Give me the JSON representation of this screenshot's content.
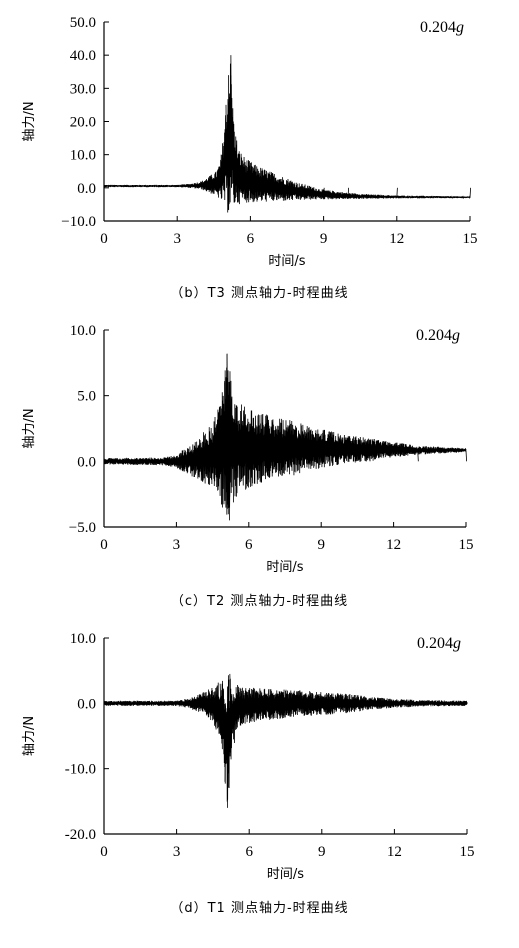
{
  "chart_data": [
    {
      "id": "b",
      "type": "line",
      "caption": "（b）T3 测点轴力-时程曲线",
      "annotation": "0.204",
      "annotation_unit": "g",
      "xlabel": "时间/s",
      "ylabel": "轴力/N",
      "xlim": [
        0,
        15
      ],
      "ylim": [
        -10,
        50
      ],
      "xticks": [
        0,
        3,
        6,
        9,
        12,
        15
      ],
      "xtick_labels": [
        "0",
        "3",
        "6",
        "9",
        "12",
        "15"
      ],
      "yticks": [
        -10,
        0,
        10,
        20,
        30,
        40,
        50
      ],
      "ytick_labels": [
        "−10.0",
        "0.0",
        "10.0",
        "20.0",
        "30.0",
        "40.0",
        "50.0"
      ],
      "series": [
        {
          "x": [
            0,
            3.5,
            4.2,
            4.5,
            4.8,
            5.0,
            5.1,
            5.2,
            5.3,
            5.5,
            6.0,
            7.0,
            8.0,
            9.0,
            10.0,
            12.0,
            15.0
          ],
          "y": [
            0.5,
            0.5,
            2,
            3,
            10,
            25,
            34,
            40,
            20,
            10,
            5,
            1,
            -2,
            -2.5,
            -3,
            -3,
            -3
          ]
        }
      ],
      "envelope": {
        "x": [
          0,
          3.0,
          3.5,
          4.0,
          4.3,
          4.6,
          4.8,
          5.0,
          5.1,
          5.2,
          5.3,
          5.5,
          5.8,
          6.2,
          6.8,
          7.5,
          8.0,
          8.5,
          9.0,
          10.0,
          11.0,
          12.0,
          15.0
        ],
        "upper": [
          0.9,
          0.9,
          1.2,
          2.0,
          3.5,
          5.0,
          9.0,
          25.0,
          34.0,
          40.0,
          22.0,
          12.0,
          9.0,
          7.0,
          5.0,
          3.0,
          1.5,
          0.5,
          -0.5,
          -1.5,
          -2.0,
          -2.3,
          -2.6
        ],
        "lower": [
          0.2,
          0.2,
          0.0,
          -0.5,
          -1.5,
          -2.5,
          -4.0,
          -6.0,
          -8.5,
          -7.0,
          -6.0,
          -5.0,
          -4.5,
          -4.5,
          -4.2,
          -4.0,
          -3.8,
          -3.6,
          -3.5,
          -3.4,
          -3.3,
          -3.2,
          -3.1
        ]
      }
    },
    {
      "id": "c",
      "type": "line",
      "caption": "（c）T2 测点轴力-时程曲线",
      "annotation": "0.204",
      "annotation_unit": "g",
      "xlabel": "时间/s",
      "ylabel": "轴力/N",
      "xlim": [
        0,
        15
      ],
      "ylim": [
        -5,
        10
      ],
      "xticks": [
        0,
        3,
        6,
        9,
        12,
        15
      ],
      "xtick_labels": [
        "0",
        "3",
        "6",
        "9",
        "12",
        "15"
      ],
      "yticks": [
        -5,
        0,
        5,
        10
      ],
      "ytick_labels": [
        "−5.0",
        "0.0",
        "5.0",
        "10.0"
      ],
      "series": [
        {
          "x": [
            0,
            3.0,
            4.0,
            5.0,
            5.1,
            5.2,
            6.0,
            7.0,
            9.0,
            11.0,
            13.0,
            15.0
          ],
          "y": [
            0,
            0,
            1,
            6,
            8.2,
            -4.5,
            3,
            2.5,
            1.5,
            1,
            0.8,
            0.8
          ]
        }
      ],
      "envelope": {
        "x": [
          0,
          2.5,
          3.0,
          3.5,
          4.0,
          4.5,
          4.8,
          5.0,
          5.1,
          5.2,
          5.3,
          5.6,
          6.0,
          7.0,
          8.0,
          9.0,
          10.0,
          11.0,
          12.0,
          13.0,
          14.0,
          15.0
        ],
        "upper": [
          0.25,
          0.3,
          0.5,
          1.2,
          2.0,
          3.0,
          5.0,
          7.0,
          8.2,
          7.8,
          6.0,
          4.5,
          4.0,
          3.5,
          3.0,
          2.5,
          2.0,
          1.8,
          1.5,
          1.2,
          1.1,
          1.0
        ],
        "lower": [
          -0.25,
          -0.3,
          -0.5,
          -1.0,
          -1.5,
          -2.0,
          -3.0,
          -4.0,
          -4.5,
          -4.2,
          -3.5,
          -2.5,
          -2.0,
          -1.5,
          -1.0,
          -0.5,
          -0.2,
          0.0,
          0.3,
          0.5,
          0.6,
          0.7
        ]
      }
    },
    {
      "id": "d",
      "type": "line",
      "caption": "（d）T1 测点轴力-时程曲线",
      "annotation": "0.204",
      "annotation_unit": "g",
      "xlabel": "时间/s",
      "ylabel": "轴力/N",
      "xlim": [
        0,
        15
      ],
      "ylim": [
        -20,
        10
      ],
      "xticks": [
        0,
        3,
        6,
        9,
        12,
        15
      ],
      "xtick_labels": [
        "0",
        "3",
        "6",
        "9",
        "12",
        "15"
      ],
      "yticks": [
        -20,
        -10,
        0,
        10
      ],
      "ytick_labels": [
        "-20.0",
        "-10.0",
        "0.0",
        "10.0"
      ],
      "series": [
        {
          "x": [
            0,
            3.0,
            4.0,
            4.8,
            5.0,
            5.1,
            5.2,
            6.0,
            8.0,
            10.0,
            12.0,
            15.0
          ],
          "y": [
            0,
            0,
            1,
            3,
            -12,
            -16,
            4.5,
            2,
            1.5,
            0.8,
            0.3,
            0.1
          ]
        }
      ],
      "envelope": {
        "x": [
          0,
          3.0,
          3.5,
          4.0,
          4.5,
          4.8,
          5.0,
          5.1,
          5.2,
          5.3,
          5.5,
          6.0,
          7.0,
          8.0,
          9.0,
          10.0,
          11.0,
          12.0,
          13.0,
          15.0
        ],
        "upper": [
          0.4,
          0.4,
          0.8,
          1.5,
          2.5,
          3.5,
          4.0,
          4.5,
          4.2,
          3.5,
          3.0,
          2.5,
          2.2,
          2.0,
          1.8,
          1.5,
          1.0,
          0.7,
          0.5,
          0.4
        ],
        "lower": [
          -0.4,
          -0.4,
          -0.8,
          -1.5,
          -3.0,
          -6.0,
          -12.0,
          -16.0,
          -12.0,
          -8.0,
          -4.0,
          -3.0,
          -2.5,
          -2.0,
          -1.8,
          -1.5,
          -1.0,
          -0.7,
          -0.5,
          -0.4
        ]
      }
    }
  ]
}
